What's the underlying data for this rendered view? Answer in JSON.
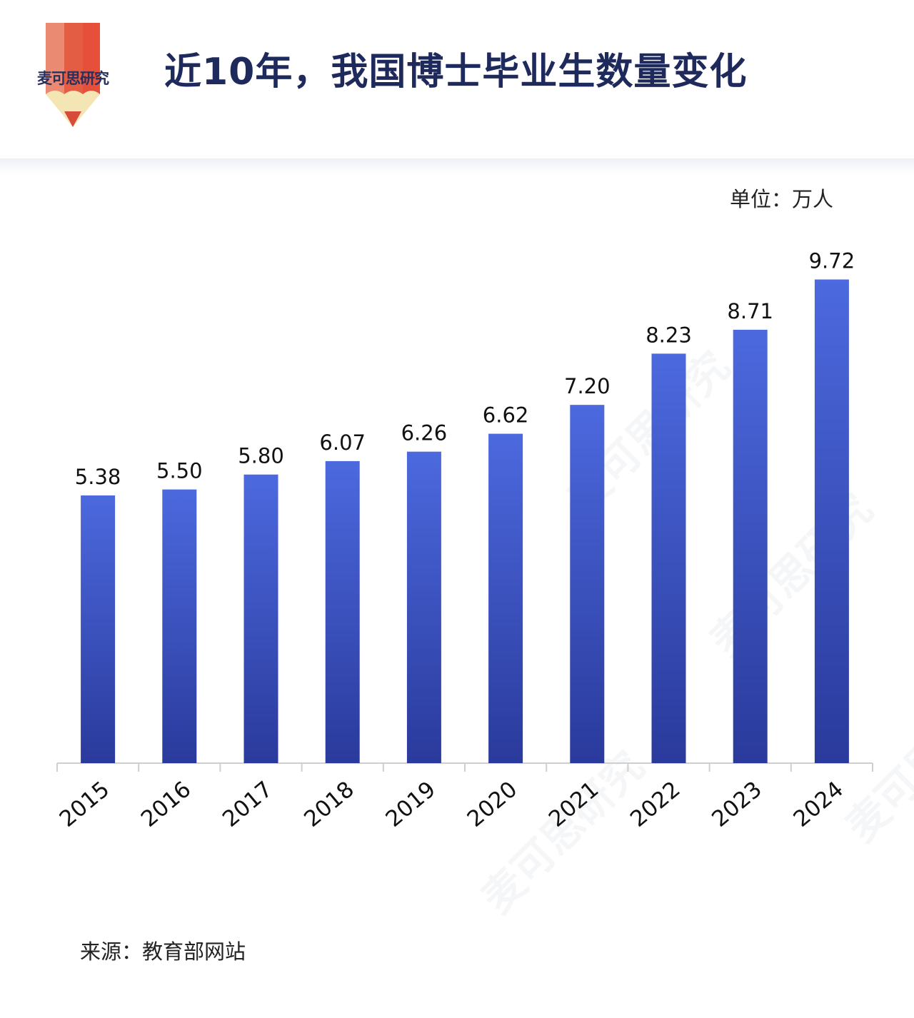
{
  "brand": {
    "name": "麦可思研究",
    "colors": {
      "pencil_orange": "#e3553d",
      "pencil_light": "#e98670",
      "pencil_tip": "#f3e6b4",
      "pencil_lead": "#d84a3a"
    }
  },
  "header": {
    "title": "近10年，我国博士毕业生数量变化"
  },
  "unit_label": "单位：万人",
  "source_label": "来源：教育部网站",
  "watermark_text": "麦可思研究",
  "colors": {
    "bar_top": "#4c69de",
    "bar_bottom": "#2a3a9c",
    "title": "#1f2a5c",
    "axis": "#cfcfcf"
  },
  "chart_data": {
    "type": "bar",
    "title": "近10年，我国博士毕业生数量变化",
    "unit": "单位：万人",
    "xlabel": "",
    "ylabel": "",
    "categories": [
      "2015",
      "2016",
      "2017",
      "2018",
      "2019",
      "2020",
      "2021",
      "2022",
      "2023",
      "2024"
    ],
    "values": [
      5.38,
      5.5,
      5.8,
      6.07,
      6.26,
      6.62,
      7.2,
      8.23,
      8.71,
      9.72
    ],
    "value_labels": [
      "5.38",
      "5.50",
      "5.80",
      "6.07",
      "6.26",
      "6.62",
      "7.20",
      "8.23",
      "8.71",
      "9.72"
    ],
    "ylim": [
      0,
      10
    ],
    "grid": false,
    "legend": "none"
  }
}
